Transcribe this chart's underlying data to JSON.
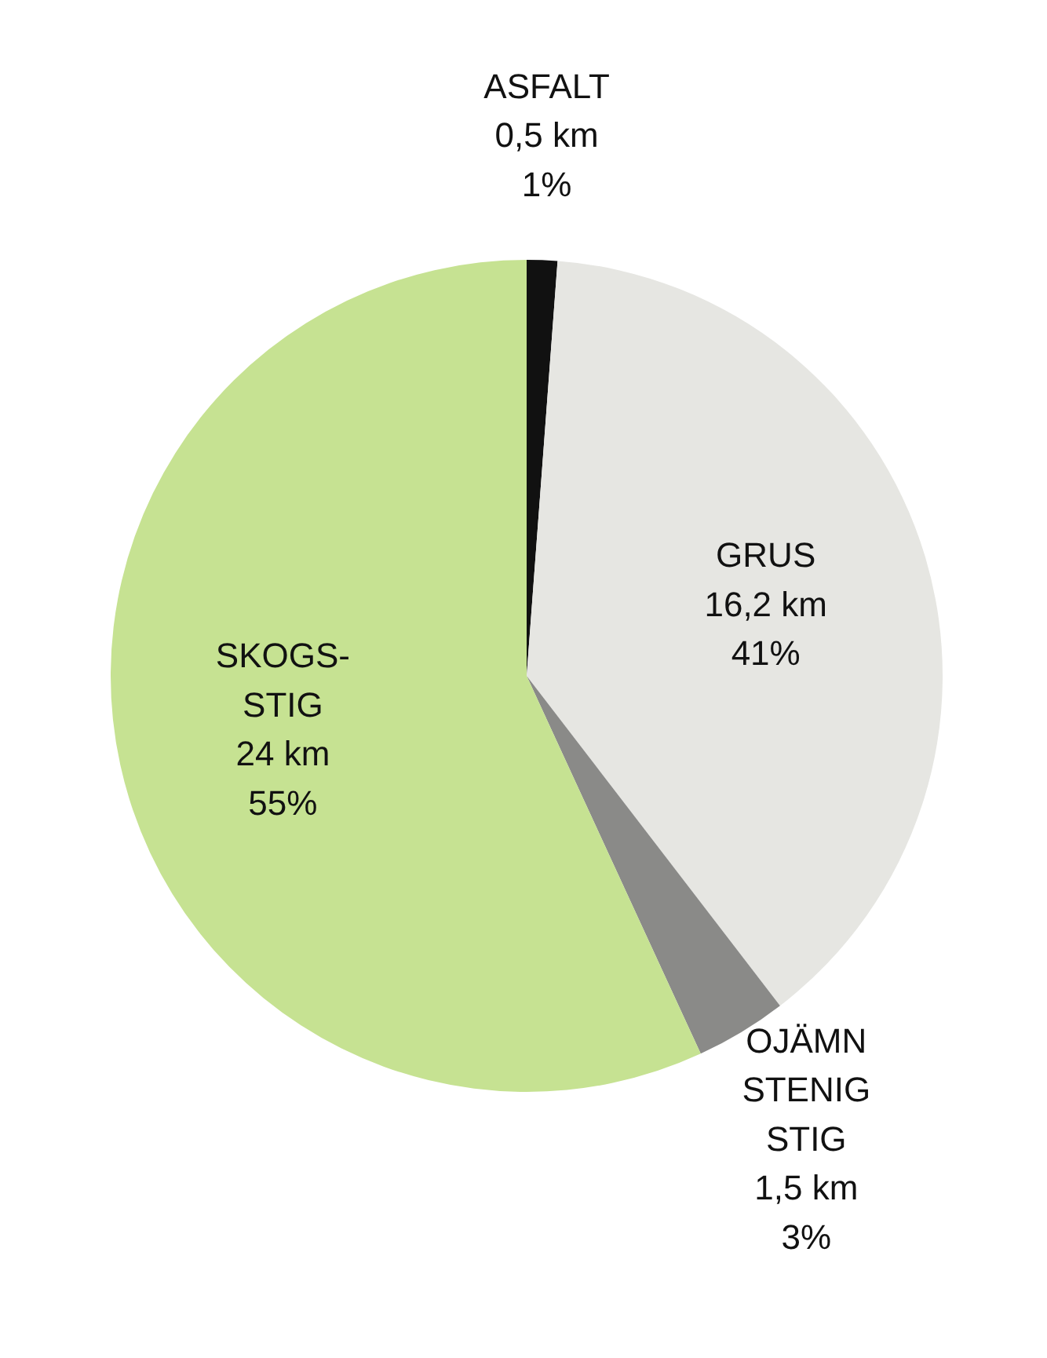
{
  "chart_data": {
    "type": "pie",
    "categories": [
      "ASFALT",
      "GRUS",
      "OJÄMN\nSTENIG\nSTIG",
      "SKOGS-\nSTIG"
    ],
    "values": [
      0.5,
      16.2,
      1.5,
      24
    ],
    "value_labels": [
      "0,5 km\n1%",
      "16,2 km\n41%",
      "1,5 km\n3%",
      "24 km\n55%"
    ],
    "colors": [
      "#111111",
      "#e6e6e2",
      "#8a8a88",
      "#c6e292"
    ]
  }
}
